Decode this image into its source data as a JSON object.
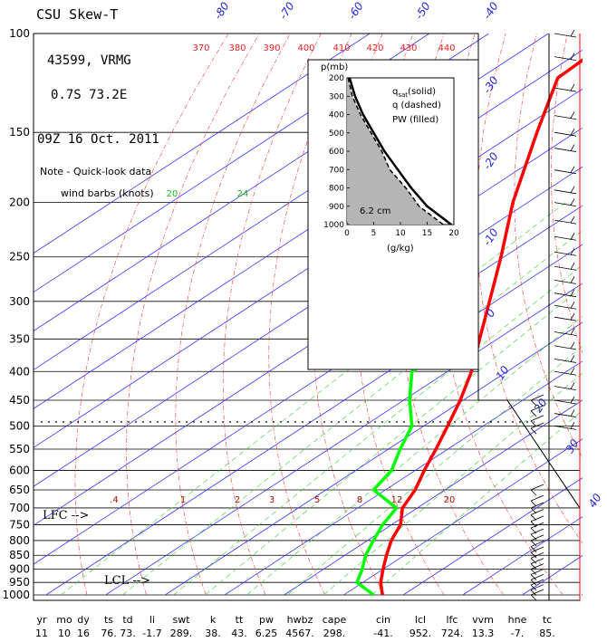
{
  "chart_data": {
    "type": "line",
    "title": "CSU Skew-T",
    "station": "43599, VRMG",
    "location": "0.7S  73.2E",
    "datetime": "09Z 16 Oct. 2011",
    "note_line1": "Note - Quick-look data",
    "note_line2": "wind barbs (knots)",
    "pressure_ticks": [
      100,
      150,
      200,
      250,
      300,
      350,
      400,
      450,
      500,
      550,
      600,
      650,
      700,
      750,
      800,
      850,
      900,
      950,
      1000
    ],
    "temperature_isotherm_labels": [
      "-80",
      "-70",
      "-60",
      "-50",
      "-40",
      "-30",
      "-20",
      "-10",
      "0",
      "10",
      "20",
      "30",
      "40"
    ],
    "theta_e_labels": [
      "370",
      "380",
      "390",
      "400",
      "410",
      "420",
      "430",
      "440"
    ],
    "mixing_ratio_top_labels": [
      "20",
      "24",
      "3"
    ],
    "mixing_ratio_bottom_labels": [
      ".4",
      "1",
      "2",
      "3",
      "5",
      "8",
      "12",
      "20"
    ],
    "series": [
      {
        "name": "temperature",
        "color": "#ff0000",
        "points": [
          [
            1000,
            26.5
          ],
          [
            950,
            23.0
          ],
          [
            900,
            20.0
          ],
          [
            850,
            17.0
          ],
          [
            800,
            14.0
          ],
          [
            750,
            11.5
          ],
          [
            700,
            7.5
          ],
          [
            650,
            5.0
          ],
          [
            600,
            1.5
          ],
          [
            550,
            -2.0
          ],
          [
            500,
            -6.0
          ],
          [
            450,
            -10.5
          ],
          [
            400,
            -16.0
          ],
          [
            350,
            -23.0
          ],
          [
            300,
            -31.0
          ],
          [
            250,
            -40.5
          ],
          [
            200,
            -52.5
          ],
          [
            150,
            -66.5
          ],
          [
            120,
            -77.0
          ],
          [
            100,
            -78.0
          ]
        ]
      },
      {
        "name": "dewpoint",
        "color": "#00ff00",
        "points": [
          [
            1000,
            25.0
          ],
          [
            950,
            19.0
          ],
          [
            900,
            16.5
          ],
          [
            850,
            13.5
          ],
          [
            800,
            11.0
          ],
          [
            750,
            8.5
          ],
          [
            700,
            6.5
          ],
          [
            650,
            -2.0
          ],
          [
            600,
            -4.0
          ],
          [
            550,
            -8.0
          ],
          [
            500,
            -12.0
          ],
          [
            450,
            -19.0
          ],
          [
            400,
            -26.0
          ],
          [
            350,
            -26.0
          ],
          [
            340,
            -30.0
          ],
          [
            300,
            -46.0
          ],
          [
            280,
            -43.0
          ],
          [
            250,
            -53.0
          ],
          [
            240,
            -54.0
          ],
          [
            230,
            -56.0
          ],
          [
            210,
            -63.0
          ],
          [
            200,
            -69.0
          ]
        ]
      }
    ],
    "inset": {
      "title_solid": "q",
      "title_solid_sub": "sat",
      "title_solid_rest": "(solid)",
      "title_dashed": "q  (dashed)",
      "title_filled": "PW  (filled)",
      "pw_value": "6.2 cm",
      "y_label": "p(mb)",
      "y_ticks": [
        "200",
        "300",
        "400",
        "500",
        "600",
        "700",
        "800",
        "900",
        "1000"
      ],
      "x_ticks": [
        "0",
        "5",
        "10",
        "15",
        "20"
      ],
      "x_label": "(g/kg)",
      "xlim": [
        0,
        20
      ],
      "ylim": [
        200,
        1000
      ],
      "qsat": [
        [
          200,
          0.5
        ],
        [
          300,
          1.5
        ],
        [
          400,
          3.0
        ],
        [
          500,
          5.0
        ],
        [
          600,
          7.0
        ],
        [
          700,
          9.5
        ],
        [
          800,
          12.0
        ],
        [
          900,
          15.0
        ],
        [
          1000,
          19.5
        ]
      ],
      "q": [
        [
          200,
          0.2
        ],
        [
          300,
          1.0
        ],
        [
          400,
          2.5
        ],
        [
          500,
          4.5
        ],
        [
          600,
          6.5
        ],
        [
          700,
          8.0
        ],
        [
          800,
          11.0
        ],
        [
          900,
          13.5
        ],
        [
          1000,
          18.0
        ]
      ]
    },
    "wind_barbs_note": "wind barbs (knots)",
    "indices": {
      "headers": [
        "yr",
        "mo",
        "dy",
        "ts",
        "td",
        "li",
        "swt",
        "k",
        "tt",
        "pw",
        "hwbz",
        "cape",
        "cin",
        "lcl",
        "lfc",
        "vvm",
        "hne",
        "tc"
      ],
      "values": [
        "11",
        "10",
        "16",
        "76.",
        "73.",
        "-1.7",
        "289.",
        "38.",
        "43.",
        "6.25",
        "4567.",
        "298.",
        "-41.",
        "952.",
        "724.",
        "13.3",
        "-7.",
        "85."
      ]
    },
    "annotations": {
      "lfc": "LFC -->",
      "lcl": "LCL -->",
      "lfc_pressure": 724,
      "lcl_pressure": 952
    }
  }
}
